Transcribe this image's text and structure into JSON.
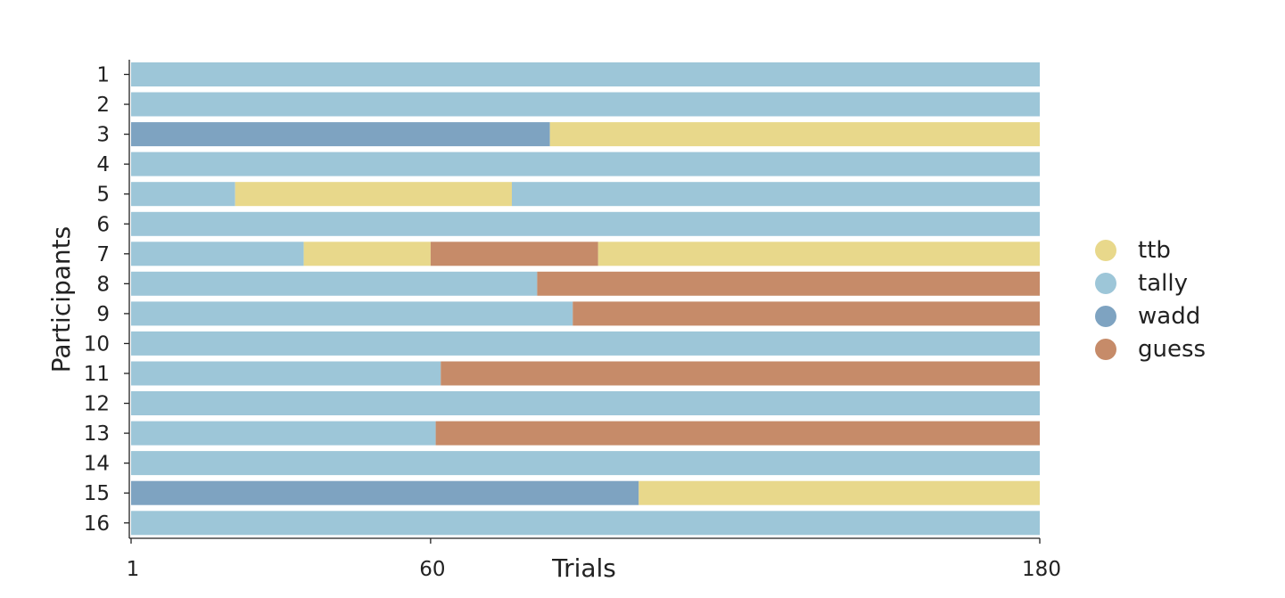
{
  "chart_data": {
    "type": "bar",
    "orientation": "horizontal-timeline",
    "xlabel": "Trials",
    "ylabel": "Participants",
    "xlim": [
      1,
      180
    ],
    "x_ticks": [
      "1",
      "60",
      "180"
    ],
    "participants": [
      "1",
      "2",
      "3",
      "4",
      "5",
      "6",
      "7",
      "8",
      "9",
      "10",
      "11",
      "12",
      "13",
      "14",
      "15",
      "16"
    ],
    "strategies": [
      "ttb",
      "tally",
      "wadd",
      "guess"
    ],
    "colors": {
      "ttb": "#e8d88b",
      "tally": "#9dc6d8",
      "wadd": "#7ea3c1",
      "guess": "#c68b69"
    },
    "sequences": [
      {
        "participant": "1",
        "segments": [
          {
            "strategy": "tally",
            "start": 1,
            "end": 180
          }
        ]
      },
      {
        "participant": "2",
        "segments": [
          {
            "strategy": "tally",
            "start": 1,
            "end": 180
          }
        ]
      },
      {
        "participant": "3",
        "segments": [
          {
            "strategy": "wadd",
            "start": 1,
            "end": 83.5
          },
          {
            "strategy": "ttb",
            "start": 83.5,
            "end": 180
          }
        ]
      },
      {
        "participant": "4",
        "segments": [
          {
            "strategy": "tally",
            "start": 1,
            "end": 180
          }
        ]
      },
      {
        "participant": "5",
        "segments": [
          {
            "strategy": "tally",
            "start": 1,
            "end": 21.5
          },
          {
            "strategy": "ttb",
            "start": 21.5,
            "end": 76
          },
          {
            "strategy": "tally",
            "start": 76,
            "end": 180
          }
        ]
      },
      {
        "participant": "6",
        "segments": [
          {
            "strategy": "tally",
            "start": 1,
            "end": 180
          }
        ]
      },
      {
        "participant": "7",
        "segments": [
          {
            "strategy": "tally",
            "start": 1,
            "end": 35
          },
          {
            "strategy": "ttb",
            "start": 35,
            "end": 60
          },
          {
            "strategy": "guess",
            "start": 60,
            "end": 93
          },
          {
            "strategy": "ttb",
            "start": 93,
            "end": 180
          }
        ]
      },
      {
        "participant": "8",
        "segments": [
          {
            "strategy": "tally",
            "start": 1,
            "end": 81
          },
          {
            "strategy": "guess",
            "start": 81,
            "end": 180
          }
        ]
      },
      {
        "participant": "9",
        "segments": [
          {
            "strategy": "tally",
            "start": 1,
            "end": 88
          },
          {
            "strategy": "guess",
            "start": 88,
            "end": 180
          }
        ]
      },
      {
        "participant": "10",
        "segments": [
          {
            "strategy": "tally",
            "start": 1,
            "end": 180
          }
        ]
      },
      {
        "participant": "11",
        "segments": [
          {
            "strategy": "tally",
            "start": 1,
            "end": 62
          },
          {
            "strategy": "guess",
            "start": 62,
            "end": 180
          }
        ]
      },
      {
        "participant": "12",
        "segments": [
          {
            "strategy": "tally",
            "start": 1,
            "end": 180
          }
        ]
      },
      {
        "participant": "13",
        "segments": [
          {
            "strategy": "tally",
            "start": 1,
            "end": 61
          },
          {
            "strategy": "guess",
            "start": 61,
            "end": 180
          }
        ]
      },
      {
        "participant": "14",
        "segments": [
          {
            "strategy": "tally",
            "start": 1,
            "end": 180
          }
        ]
      },
      {
        "participant": "15",
        "segments": [
          {
            "strategy": "wadd",
            "start": 1,
            "end": 101
          },
          {
            "strategy": "ttb",
            "start": 101,
            "end": 180
          }
        ]
      },
      {
        "participant": "16",
        "segments": [
          {
            "strategy": "tally",
            "start": 1,
            "end": 180
          }
        ]
      }
    ]
  }
}
